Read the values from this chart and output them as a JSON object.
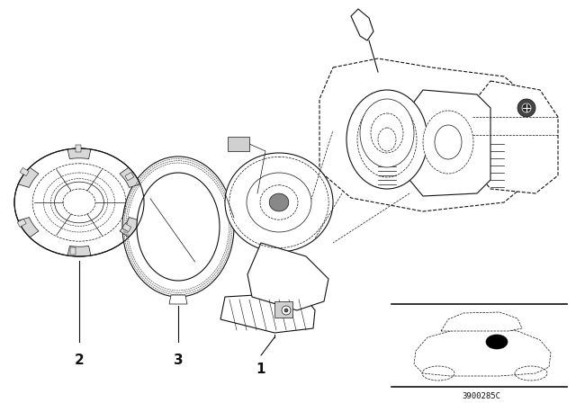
{
  "background_color": "#ffffff",
  "line_color": "#111111",
  "diagram_code": "3900285C",
  "fig_width": 6.4,
  "fig_height": 4.48,
  "dpi": 100
}
